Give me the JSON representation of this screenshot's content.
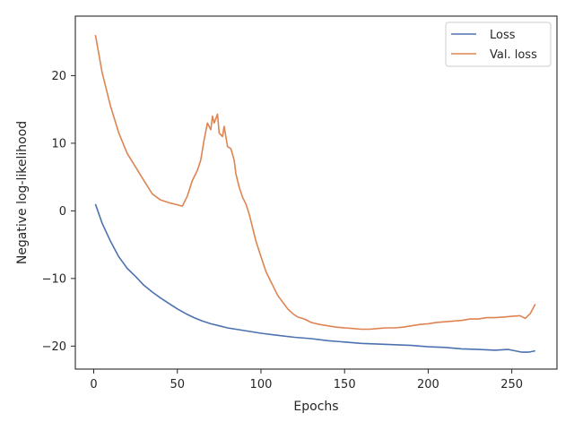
{
  "chart_data": {
    "type": "line",
    "xlabel": "Epochs",
    "ylabel": "Negative log-likelihood",
    "xlim": [
      -11,
      277
    ],
    "ylim": [
      -23.4,
      28.8
    ],
    "x_ticks": [
      0,
      50,
      100,
      150,
      200,
      250
    ],
    "y_ticks": [
      -20,
      -10,
      0,
      10,
      20
    ],
    "grid": false,
    "legend_position": "top-right",
    "series": [
      {
        "name": "Loss",
        "color": "#4c72b0",
        "points": [
          [
            1,
            1.0
          ],
          [
            5,
            -1.8
          ],
          [
            10,
            -4.5
          ],
          [
            15,
            -6.8
          ],
          [
            20,
            -8.5
          ],
          [
            25,
            -9.7
          ],
          [
            30,
            -11.0
          ],
          [
            35,
            -12.0
          ],
          [
            40,
            -12.9
          ],
          [
            45,
            -13.7
          ],
          [
            50,
            -14.5
          ],
          [
            55,
            -15.2
          ],
          [
            60,
            -15.8
          ],
          [
            65,
            -16.3
          ],
          [
            70,
            -16.7
          ],
          [
            75,
            -17.0
          ],
          [
            80,
            -17.3
          ],
          [
            85,
            -17.5
          ],
          [
            90,
            -17.7
          ],
          [
            95,
            -17.9
          ],
          [
            100,
            -18.1
          ],
          [
            110,
            -18.4
          ],
          [
            120,
            -18.7
          ],
          [
            130,
            -18.9
          ],
          [
            140,
            -19.2
          ],
          [
            150,
            -19.4
          ],
          [
            160,
            -19.6
          ],
          [
            170,
            -19.7
          ],
          [
            180,
            -19.8
          ],
          [
            190,
            -19.9
          ],
          [
            200,
            -20.1
          ],
          [
            210,
            -20.2
          ],
          [
            220,
            -20.4
          ],
          [
            230,
            -20.5
          ],
          [
            240,
            -20.6
          ],
          [
            248,
            -20.5
          ],
          [
            252,
            -20.7
          ],
          [
            256,
            -20.9
          ],
          [
            260,
            -20.9
          ],
          [
            264,
            -20.7
          ]
        ]
      },
      {
        "name": "Val. loss",
        "color": "#dd8452",
        "points": [
          [
            1,
            26.0
          ],
          [
            5,
            20.5
          ],
          [
            10,
            15.5
          ],
          [
            15,
            11.5
          ],
          [
            20,
            8.5
          ],
          [
            25,
            6.5
          ],
          [
            30,
            4.5
          ],
          [
            35,
            2.5
          ],
          [
            40,
            1.6
          ],
          [
            45,
            1.2
          ],
          [
            50,
            0.9
          ],
          [
            53,
            0.7
          ],
          [
            56,
            2.2
          ],
          [
            59,
            4.5
          ],
          [
            62,
            6.0
          ],
          [
            64,
            7.5
          ],
          [
            66,
            10.5
          ],
          [
            68,
            13.0
          ],
          [
            70,
            12.0
          ],
          [
            71,
            14.0
          ],
          [
            72,
            13.0
          ],
          [
            74,
            14.3
          ],
          [
            75,
            11.5
          ],
          [
            77,
            11.0
          ],
          [
            78,
            12.5
          ],
          [
            80,
            9.5
          ],
          [
            82,
            9.2
          ],
          [
            84,
            7.5
          ],
          [
            85,
            5.5
          ],
          [
            87,
            3.5
          ],
          [
            89,
            2.0
          ],
          [
            91,
            1.0
          ],
          [
            93,
            -0.5
          ],
          [
            95,
            -2.5
          ],
          [
            97,
            -4.5
          ],
          [
            99,
            -6.0
          ],
          [
            101,
            -7.5
          ],
          [
            103,
            -9.0
          ],
          [
            105,
            -10.0
          ],
          [
            108,
            -11.5
          ],
          [
            110,
            -12.5
          ],
          [
            113,
            -13.5
          ],
          [
            116,
            -14.5
          ],
          [
            119,
            -15.2
          ],
          [
            122,
            -15.7
          ],
          [
            126,
            -16.0
          ],
          [
            130,
            -16.5
          ],
          [
            135,
            -16.8
          ],
          [
            140,
            -17.0
          ],
          [
            145,
            -17.2
          ],
          [
            150,
            -17.3
          ],
          [
            155,
            -17.4
          ],
          [
            160,
            -17.5
          ],
          [
            165,
            -17.5
          ],
          [
            170,
            -17.4
          ],
          [
            175,
            -17.3
          ],
          [
            180,
            -17.3
          ],
          [
            185,
            -17.2
          ],
          [
            190,
            -17.0
          ],
          [
            195,
            -16.8
          ],
          [
            200,
            -16.7
          ],
          [
            205,
            -16.5
          ],
          [
            210,
            -16.4
          ],
          [
            215,
            -16.3
          ],
          [
            220,
            -16.2
          ],
          [
            225,
            -16.0
          ],
          [
            230,
            -16.0
          ],
          [
            235,
            -15.8
          ],
          [
            240,
            -15.8
          ],
          [
            245,
            -15.7
          ],
          [
            250,
            -15.6
          ],
          [
            255,
            -15.5
          ],
          [
            258,
            -15.9
          ],
          [
            261,
            -15.2
          ],
          [
            264,
            -13.8
          ]
        ]
      }
    ]
  }
}
